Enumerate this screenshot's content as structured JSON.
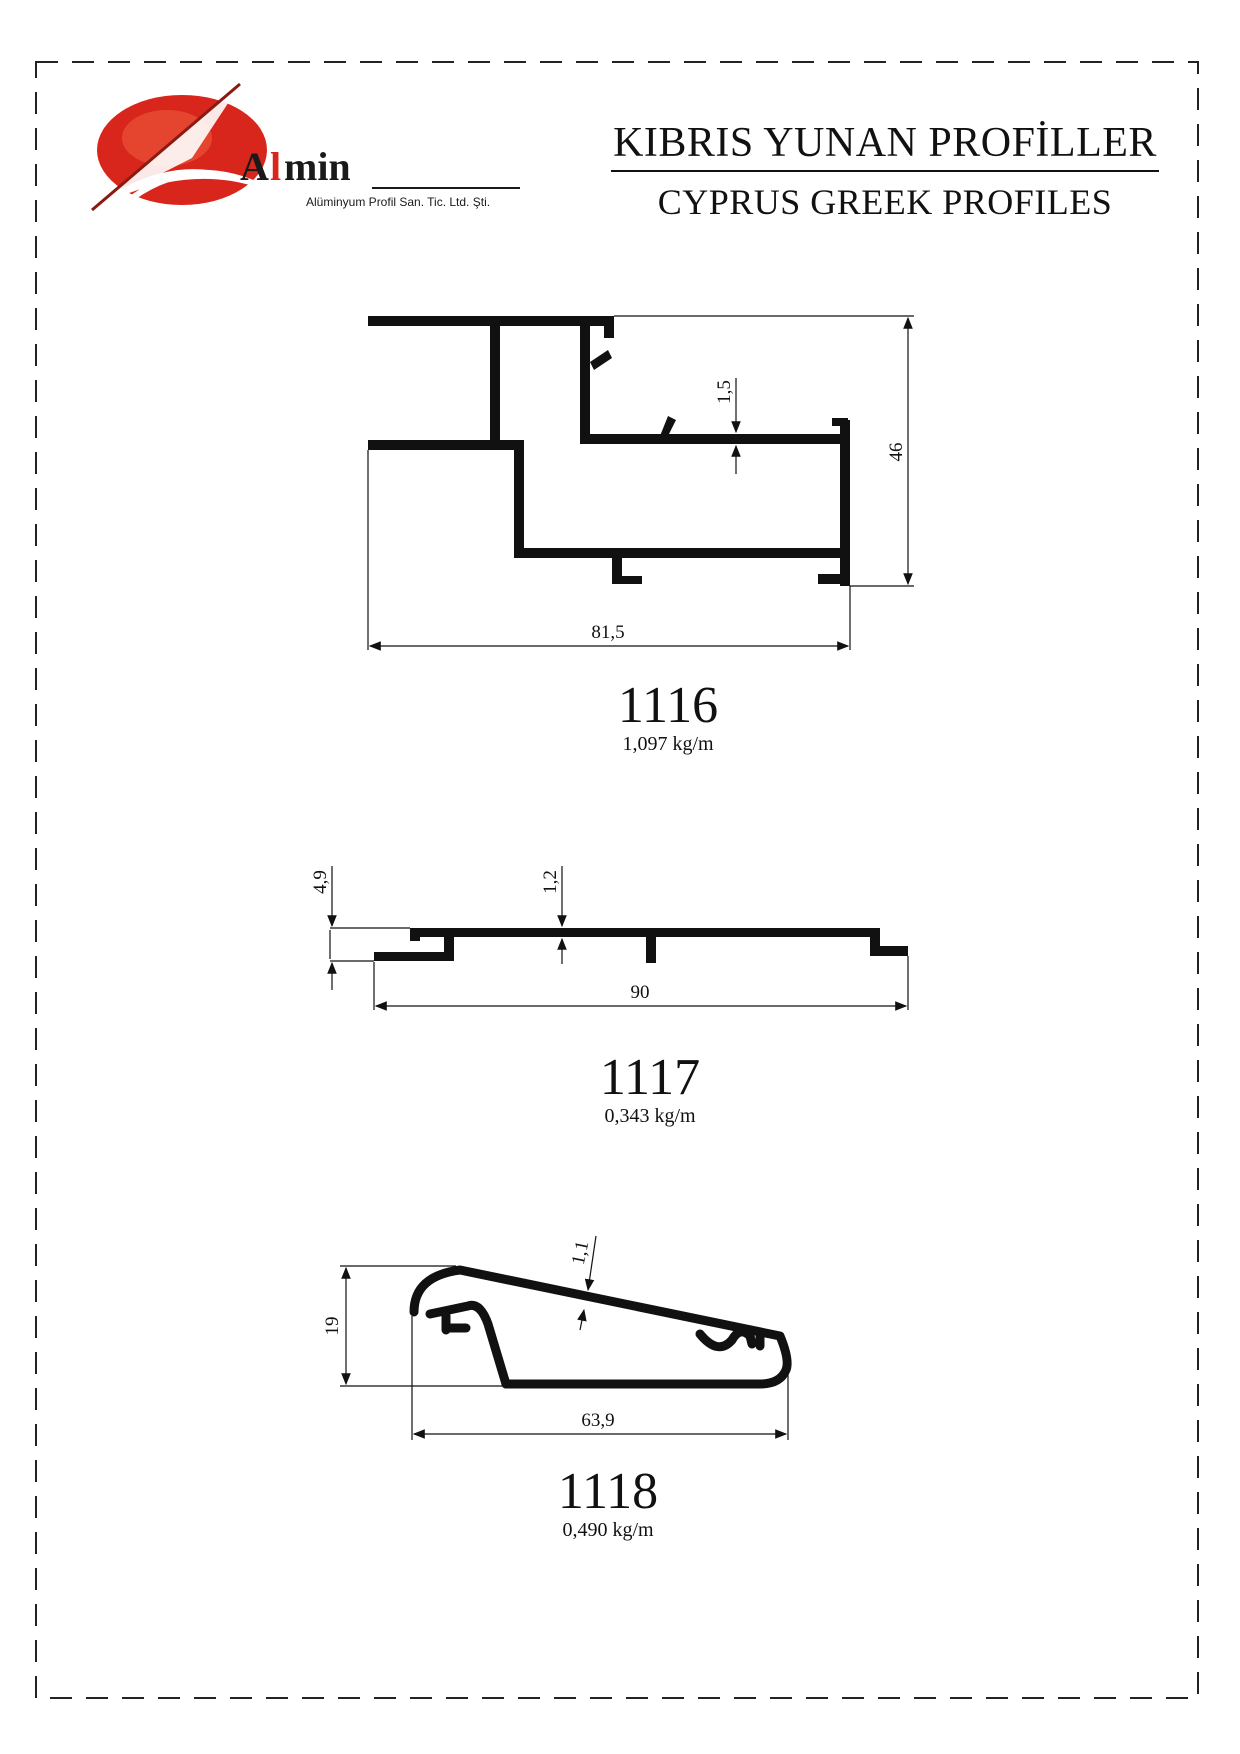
{
  "header": {
    "title_tr": "KIBRIS YUNAN PROFİLLER",
    "title_en": "CYPRUS GREEK PROFILES"
  },
  "logo": {
    "brand_initial": "A",
    "brand_highlight": "l",
    "brand_rest": "min",
    "tagline": "Alüminyum Profil San. Tic. Ltd. Şti.",
    "icon": "almin-swoosh-logo",
    "colors": {
      "red": "#d8261c",
      "dark": "#1a1a1a"
    }
  },
  "profiles": [
    {
      "code": "1116",
      "weight": "1,097 kg/m",
      "dimensions": {
        "width": "81,5",
        "height": "46",
        "wall": "1,5"
      }
    },
    {
      "code": "1117",
      "weight": "0,343 kg/m",
      "dimensions": {
        "width": "90",
        "height": "4,9",
        "wall": "1,2"
      }
    },
    {
      "code": "1118",
      "weight": "0,490 kg/m",
      "dimensions": {
        "width": "63,9",
        "height": "19",
        "wall": "1,1"
      }
    }
  ]
}
